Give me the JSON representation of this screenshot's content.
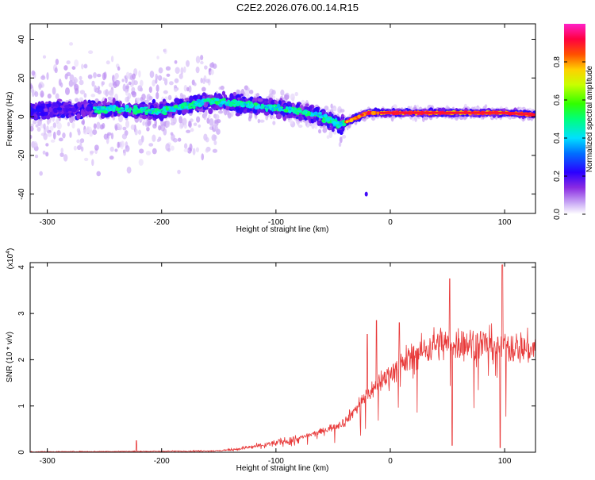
{
  "title": "C2E2.2026.076.00.14.R15",
  "chart_data": [
    {
      "type": "heatmap",
      "xlabel": "Height of straight line (km)",
      "ylabel": "Frequency (Hz)",
      "xlim": [
        -315,
        127
      ],
      "ylim": [
        -50,
        48
      ],
      "xticks": [
        -300,
        -200,
        -100,
        0,
        100
      ],
      "yticks": [
        -40,
        -20,
        0,
        20,
        40
      ],
      "colorbar": {
        "label": "Normalized spectral amplitude",
        "range": [
          0,
          1
        ],
        "ticks": [
          "0.0",
          "0.2",
          "0.4",
          "0.6",
          "0.8"
        ],
        "tick_values": [
          0,
          0.2,
          0.4,
          0.6,
          0.8
        ],
        "colormap": "rainbow: white-violet-blue-cyan-green-yellow-red-magenta"
      },
      "ridge": {
        "description": "dominant frequency track",
        "x": [
          -315,
          -250,
          -200,
          -160,
          -120,
          -80,
          -60,
          -45,
          -35,
          -20,
          0,
          50,
          100,
          127
        ],
        "y": [
          3,
          4,
          3,
          8,
          6,
          3,
          0,
          -4,
          -2,
          2,
          2,
          2,
          2,
          1
        ]
      }
    },
    {
      "type": "line",
      "xlabel": "Height of straight line (km)",
      "ylabel": "SNR (10 * v/v)",
      "yscale_note": "(x10",
      "yscale_exp": "4",
      "xlim": [
        -315,
        127
      ],
      "ylim": [
        0,
        4.1
      ],
      "xticks": [
        -300,
        -200,
        -100,
        0,
        100
      ],
      "yticks": [
        0,
        1,
        2,
        3,
        4
      ],
      "series": [
        {
          "color": "#e83a3a",
          "envelope": {
            "x": [
              -315,
              -200,
              -150,
              -130,
              -100,
              -80,
              -60,
              -40,
              -30,
              -20,
              -10,
              0,
              10,
              20,
              30,
              40,
              60,
              80,
              100,
              127
            ],
            "y": [
              0.01,
              0.02,
              0.03,
              0.08,
              0.2,
              0.3,
              0.45,
              0.65,
              0.95,
              1.25,
              1.5,
              1.7,
              1.9,
              2.1,
              2.2,
              2.35,
              2.35,
              2.35,
              2.3,
              2.22
            ]
          },
          "spikes": [
            {
              "x": -222,
              "y": 0.25
            },
            {
              "x": -20,
              "y": 2.55
            },
            {
              "x": -12,
              "y": 2.85
            },
            {
              "x": 8,
              "y": 2.8
            },
            {
              "x": 52,
              "y": 3.75
            },
            {
              "x": 54,
              "y": 0.15
            },
            {
              "x": 98,
              "y": 4.05
            },
            {
              "x": 96,
              "y": 0.1
            }
          ]
        }
      ]
    }
  ]
}
